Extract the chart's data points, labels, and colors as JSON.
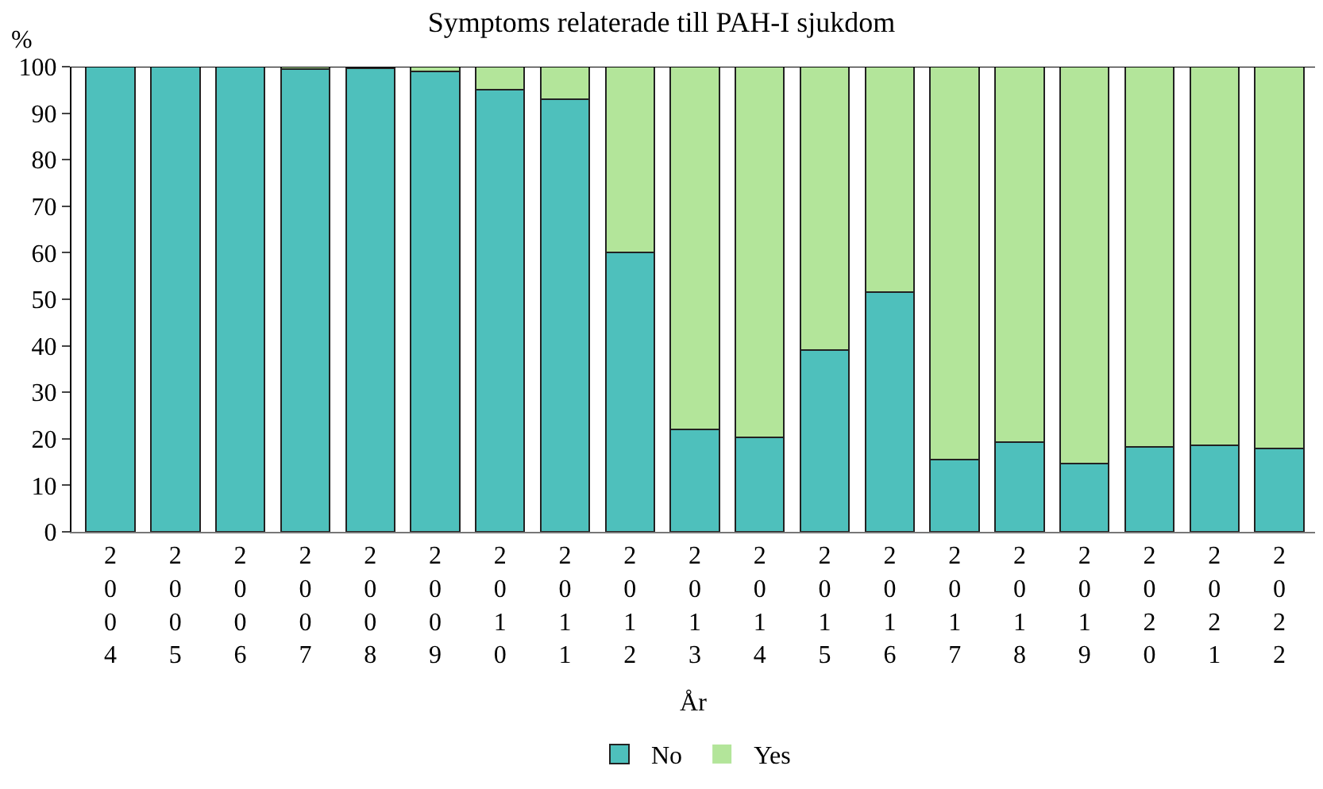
{
  "chart_data": {
    "type": "bar",
    "title": "Symptoms relaterade till PAH-I sjukdom",
    "xlabel": "År",
    "ylabel": "%",
    "stacked": true,
    "legend": "bottom",
    "categories": [
      "2004",
      "2005",
      "2006",
      "2007",
      "2008",
      "2009",
      "2010",
      "2011",
      "2012",
      "2013",
      "2014",
      "2015",
      "2016",
      "2017",
      "2018",
      "2019",
      "2020",
      "2021",
      "2022"
    ],
    "series": [
      {
        "name": "No",
        "color": "#4ec0bc",
        "values": [
          100,
          100,
          100,
          99.5,
          99.7,
          99,
          95,
          93,
          60,
          22,
          20.3,
          39,
          51.5,
          15.5,
          19.3,
          14.7,
          18.2,
          18.6,
          18
        ]
      },
      {
        "name": "Yes",
        "color": "#b3e59a",
        "values": [
          0,
          0,
          0,
          0.5,
          0.3,
          1,
          5,
          7,
          40,
          78,
          79.7,
          61,
          48.5,
          84.5,
          80.7,
          85.3,
          81.8,
          81.4,
          82
        ]
      }
    ],
    "ylim": [
      0,
      100
    ],
    "yticks": [
      0,
      10,
      20,
      30,
      40,
      50,
      60,
      70,
      80,
      90,
      100
    ]
  }
}
